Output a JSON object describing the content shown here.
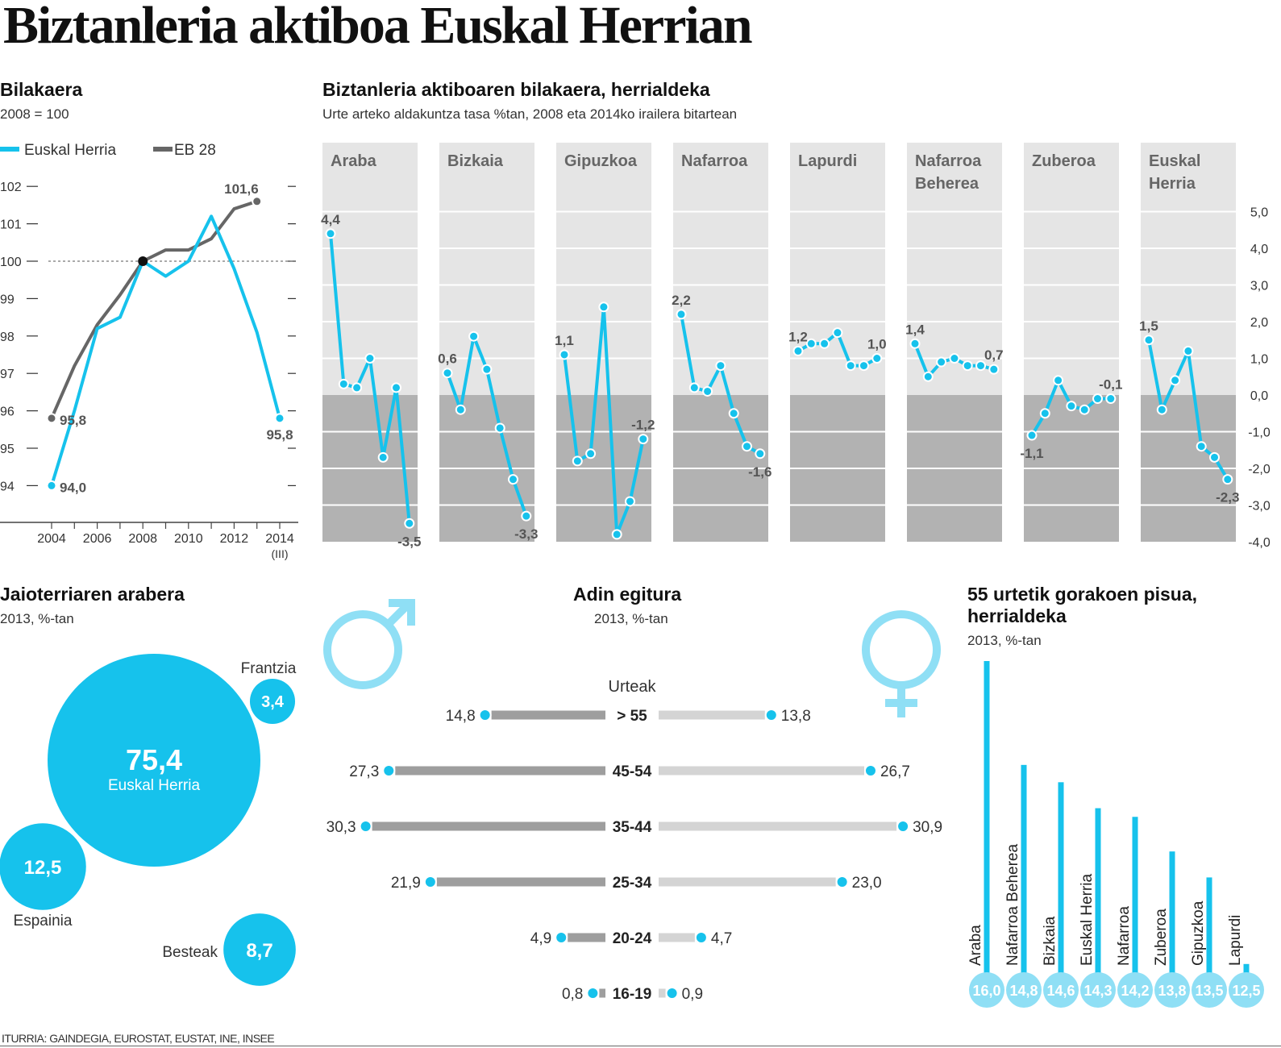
{
  "title": "Biztanleria aktiboa Euskal Herrian",
  "source": "ITURRIA: GAINDEGIA, EUROSTAT, EUSTAT, INE, INSEE",
  "colors": {
    "cyan": "#16c2ec",
    "dark": "#666666",
    "light_cyan": "#8fdff5",
    "panel_light": "#e5e5e5",
    "panel_dark": "#b2b2b2"
  },
  "evolution": {
    "heading": "Bilakaera",
    "subtitle": "2008 = 100",
    "legend": [
      "Euskal Herria",
      "EB 28"
    ],
    "x_ticks": [
      "2004",
      "2006",
      "2008",
      "2010",
      "2012",
      "2014"
    ],
    "x_tick_note": "(III)",
    "y_ticks": [
      "94",
      "95",
      "96",
      "97",
      "98",
      "99",
      "100",
      "101",
      "102"
    ]
  },
  "regions_chart": {
    "heading": "Biztanleria aktiboaren bilakaera, herrialdeka",
    "subtitle": "Urte arteko aldakuntza tasa %tan, 2008 eta 2014ko irailera bitartean",
    "y_ticks": [
      "5,0",
      "4,0",
      "3,0",
      "2,0",
      "1,0",
      "0,0",
      "-1,0",
      "-2,0",
      "-3,0",
      "-4,0"
    ]
  },
  "birthplace": {
    "heading": "Jaioterriaren arabera",
    "subtitle": "2013, %-tan",
    "items": [
      {
        "label": "Euskal Herria",
        "value": "75,4"
      },
      {
        "label": "Frantzia",
        "value": "3,4"
      },
      {
        "label": "Espainia",
        "value": "12,5"
      },
      {
        "label": "Besteak",
        "value": "8,7"
      }
    ]
  },
  "age": {
    "heading": "Adin egitura",
    "subtitle": "2013, %-tan",
    "column_label": "Urteak"
  },
  "over55": {
    "heading_line1": "55 urtetik gorakoen pisua,",
    "heading_line2": "herrialdeka",
    "subtitle": "2013, %-tan"
  },
  "chart_data": [
    {
      "type": "line",
      "title": "Bilakaera",
      "subtitle": "2008 = 100",
      "x": [
        2004,
        2005,
        2006,
        2007,
        2008,
        2009,
        2010,
        2011,
        2012,
        2013,
        2014
      ],
      "series": [
        {
          "name": "Euskal Herria",
          "values": [
            94.0,
            96.0,
            98.2,
            98.5,
            100.0,
            99.6,
            100.0,
            101.2,
            99.8,
            98.1,
            95.8
          ]
        },
        {
          "name": "EB 28",
          "values": [
            95.8,
            97.2,
            98.3,
            99.1,
            100.0,
            100.3,
            100.3,
            100.6,
            101.4,
            101.6,
            null
          ]
        }
      ],
      "labels": [
        {
          "series": "Euskal Herria",
          "x": 2004,
          "text": "94,0"
        },
        {
          "series": "EB 28",
          "x": 2004,
          "text": "95,8"
        },
        {
          "series": "EB 28",
          "x": 2013,
          "text": "101,6"
        },
        {
          "series": "Euskal Herria",
          "x": 2014,
          "text": "95,8"
        }
      ],
      "ylim": [
        93.5,
        102.5
      ],
      "reference_line": 100
    },
    {
      "type": "line",
      "title": "Biztanleria aktiboaren bilakaera, herrialdeka",
      "ylim": [
        -4.0,
        5.0
      ],
      "panels": [
        {
          "name": "Araba",
          "values": [
            4.4,
            0.3,
            0.2,
            1.0,
            -1.7,
            0.2,
            -3.5
          ],
          "first_label": "4,4",
          "last_label": "-3,5"
        },
        {
          "name": "Bizkaia",
          "values": [
            0.6,
            -0.4,
            1.6,
            0.7,
            -0.9,
            -2.3,
            -3.3
          ],
          "first_label": "0,6",
          "last_label": "-3,3"
        },
        {
          "name": "Gipuzkoa",
          "values": [
            1.1,
            -1.8,
            -1.6,
            2.4,
            -3.8,
            -2.9,
            -1.2
          ],
          "first_label": "1,1",
          "last_label": "-1,2"
        },
        {
          "name": "Nafarroa",
          "values": [
            2.2,
            0.2,
            0.1,
            0.8,
            -0.5,
            -1.4,
            -1.6
          ],
          "first_label": "2,2",
          "last_label": "-1,6"
        },
        {
          "name": "Lapurdi",
          "values": [
            1.2,
            1.4,
            1.4,
            1.7,
            0.8,
            0.8,
            1.0
          ],
          "first_label": "1,2",
          "last_label": "1,0"
        },
        {
          "name": "Nafarroa Beherea",
          "values": [
            1.4,
            0.5,
            0.9,
            1.0,
            0.8,
            0.8,
            0.7
          ],
          "first_label": "1,4",
          "last_label": "0,7"
        },
        {
          "name": "Zuberoa",
          "values": [
            -1.1,
            -0.5,
            0.4,
            -0.3,
            -0.4,
            -0.1,
            -0.1
          ],
          "first_label": "-1,1",
          "last_label": "-0,1"
        },
        {
          "name": "Euskal Herria",
          "values": [
            1.5,
            -0.4,
            0.4,
            1.2,
            -1.4,
            -1.7,
            -2.3
          ],
          "first_label": "1,5",
          "last_label": "-2,3"
        }
      ]
    },
    {
      "type": "bubble",
      "title": "Jaioterriaren arabera",
      "categories": [
        "Euskal Herria",
        "Frantzia",
        "Espainia",
        "Besteak"
      ],
      "values": [
        75.4,
        3.4,
        12.5,
        8.7
      ]
    },
    {
      "type": "bar",
      "title": "Adin egitura",
      "categories": [
        "> 55",
        "45-54",
        "35-44",
        "25-34",
        "20-24",
        "16-19"
      ],
      "series": [
        {
          "name": "male",
          "values": [
            14.8,
            27.3,
            30.3,
            21.9,
            4.9,
            0.8
          ],
          "labels": [
            "14,8",
            "27,3",
            "30,3",
            "21,9",
            "4,9",
            "0,8"
          ]
        },
        {
          "name": "female",
          "values": [
            13.8,
            26.7,
            30.9,
            23.0,
            4.7,
            0.9
          ],
          "labels": [
            "13,8",
            "26,7",
            "30,9",
            "23,0",
            "4,7",
            "0,9"
          ]
        }
      ]
    },
    {
      "type": "bar",
      "title": "55 urtetik gorakoen pisua, herrialdeka",
      "categories": [
        "Araba",
        "Nafarroa Beherea",
        "Bizkaia",
        "Euskal Herria",
        "Nafarroa",
        "Zuberoa",
        "Gipuzkoa",
        "Lapurdi"
      ],
      "values": [
        16.0,
        14.8,
        14.6,
        14.3,
        14.2,
        13.8,
        13.5,
        12.5
      ],
      "labels": [
        "16,0",
        "14,8",
        "14,6",
        "14,3",
        "14,2",
        "13,8",
        "13,5",
        "12,5"
      ]
    }
  ]
}
